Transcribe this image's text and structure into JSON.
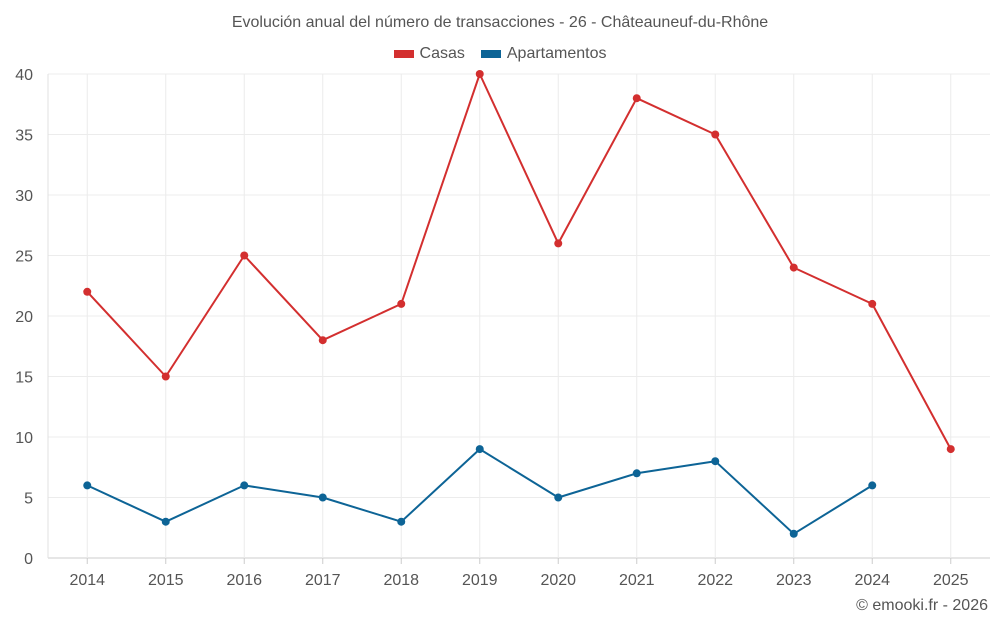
{
  "chart_data": {
    "type": "line",
    "title": "Evolución anual del número de transacciones - 26 - Châteauneuf-du-Rhône",
    "xlabel": "",
    "ylabel": "",
    "categories": [
      "2014",
      "2015",
      "2016",
      "2017",
      "2018",
      "2019",
      "2020",
      "2021",
      "2022",
      "2023",
      "2024",
      "2025"
    ],
    "ylim": [
      0,
      40
    ],
    "yticks": [
      0,
      5,
      10,
      15,
      20,
      25,
      30,
      35,
      40
    ],
    "grid": true,
    "legend_position": "top-center",
    "series": [
      {
        "name": "Casas",
        "color": "#d32f2f",
        "values": [
          22,
          15,
          25,
          18,
          21,
          40,
          26,
          38,
          35,
          24,
          21,
          9
        ]
      },
      {
        "name": "Apartamentos",
        "color": "#0d6496",
        "values": [
          6,
          3,
          6,
          5,
          3,
          9,
          5,
          7,
          8,
          2,
          6,
          null
        ]
      }
    ]
  },
  "credit": "© emooki.fr - 2026"
}
